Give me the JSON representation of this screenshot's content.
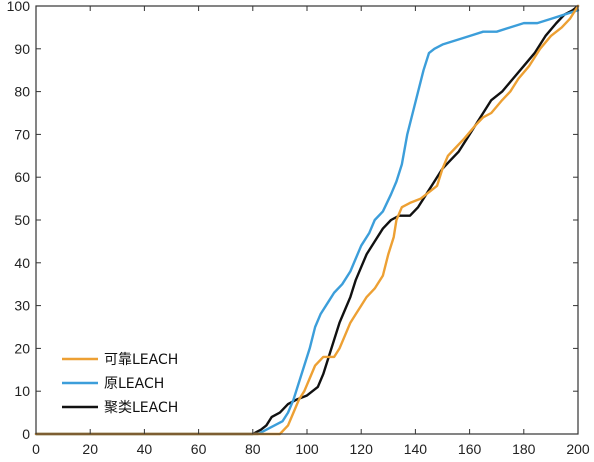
{
  "chart_data": {
    "type": "line",
    "title": "",
    "xlabel": "",
    "ylabel": "",
    "xlim": [
      0,
      200
    ],
    "ylim": [
      0,
      100
    ],
    "xticks": [
      0,
      20,
      40,
      60,
      80,
      100,
      120,
      140,
      160,
      180,
      200
    ],
    "yticks": [
      0,
      10,
      20,
      30,
      40,
      50,
      60,
      70,
      80,
      90,
      100
    ],
    "grid": false,
    "legend_position": "bottom-left",
    "series": [
      {
        "name": "可靠LEACH",
        "color": "#EDA033",
        "points": [
          [
            0,
            0
          ],
          [
            90,
            0
          ],
          [
            93,
            2
          ],
          [
            95,
            5
          ],
          [
            97,
            8
          ],
          [
            99,
            10
          ],
          [
            101,
            13
          ],
          [
            103,
            16
          ],
          [
            106,
            18
          ],
          [
            110,
            18
          ],
          [
            112,
            20
          ],
          [
            114,
            23
          ],
          [
            116,
            26
          ],
          [
            118,
            28
          ],
          [
            120,
            30
          ],
          [
            122,
            32
          ],
          [
            125,
            34
          ],
          [
            128,
            37
          ],
          [
            130,
            42
          ],
          [
            132,
            46
          ],
          [
            133,
            50
          ],
          [
            135,
            53
          ],
          [
            138,
            54
          ],
          [
            142,
            55
          ],
          [
            146,
            57
          ],
          [
            148,
            58
          ],
          [
            150,
            62
          ],
          [
            152,
            65
          ],
          [
            155,
            67
          ],
          [
            158,
            69
          ],
          [
            162,
            72
          ],
          [
            165,
            74
          ],
          [
            168,
            75
          ],
          [
            172,
            78
          ],
          [
            175,
            80
          ],
          [
            178,
            83
          ],
          [
            182,
            86
          ],
          [
            186,
            90
          ],
          [
            190,
            93
          ],
          [
            194,
            95
          ],
          [
            197,
            97
          ],
          [
            200,
            100
          ]
        ]
      },
      {
        "name": "原LEACH",
        "color": "#3C9EDA",
        "points": [
          [
            0,
            0
          ],
          [
            82,
            0
          ],
          [
            85,
            1
          ],
          [
            88,
            2
          ],
          [
            91,
            3
          ],
          [
            93,
            5
          ],
          [
            95,
            8
          ],
          [
            97,
            12
          ],
          [
            99,
            16
          ],
          [
            101,
            20
          ],
          [
            103,
            25
          ],
          [
            105,
            28
          ],
          [
            108,
            31
          ],
          [
            110,
            33
          ],
          [
            113,
            35
          ],
          [
            116,
            38
          ],
          [
            118,
            41
          ],
          [
            120,
            44
          ],
          [
            123,
            47
          ],
          [
            125,
            50
          ],
          [
            128,
            52
          ],
          [
            131,
            56
          ],
          [
            133,
            59
          ],
          [
            135,
            63
          ],
          [
            137,
            70
          ],
          [
            139,
            75
          ],
          [
            141,
            80
          ],
          [
            143,
            85
          ],
          [
            145,
            89
          ],
          [
            147,
            90
          ],
          [
            150,
            91
          ],
          [
            155,
            92
          ],
          [
            160,
            93
          ],
          [
            165,
            94
          ],
          [
            170,
            94
          ],
          [
            175,
            95
          ],
          [
            180,
            96
          ],
          [
            185,
            96
          ],
          [
            190,
            97
          ],
          [
            195,
            98
          ],
          [
            200,
            99
          ]
        ]
      },
      {
        "name": "聚类LEACH",
        "color": "#111111",
        "points": [
          [
            0,
            0
          ],
          [
            80,
            0
          ],
          [
            83,
            1
          ],
          [
            85,
            2
          ],
          [
            87,
            4
          ],
          [
            90,
            5
          ],
          [
            93,
            7
          ],
          [
            96,
            8
          ],
          [
            100,
            9
          ],
          [
            104,
            11
          ],
          [
            106,
            14
          ],
          [
            108,
            18
          ],
          [
            110,
            22
          ],
          [
            112,
            26
          ],
          [
            114,
            29
          ],
          [
            116,
            32
          ],
          [
            118,
            36
          ],
          [
            120,
            39
          ],
          [
            122,
            42
          ],
          [
            125,
            45
          ],
          [
            128,
            48
          ],
          [
            131,
            50
          ],
          [
            134,
            51
          ],
          [
            138,
            51
          ],
          [
            141,
            53
          ],
          [
            144,
            56
          ],
          [
            147,
            59
          ],
          [
            150,
            62
          ],
          [
            153,
            64
          ],
          [
            156,
            66
          ],
          [
            159,
            69
          ],
          [
            162,
            72
          ],
          [
            165,
            75
          ],
          [
            168,
            78
          ],
          [
            172,
            80
          ],
          [
            176,
            83
          ],
          [
            180,
            86
          ],
          [
            184,
            89
          ],
          [
            188,
            93
          ],
          [
            192,
            96
          ],
          [
            195,
            98
          ],
          [
            198,
            99
          ],
          [
            200,
            100
          ]
        ]
      }
    ]
  }
}
